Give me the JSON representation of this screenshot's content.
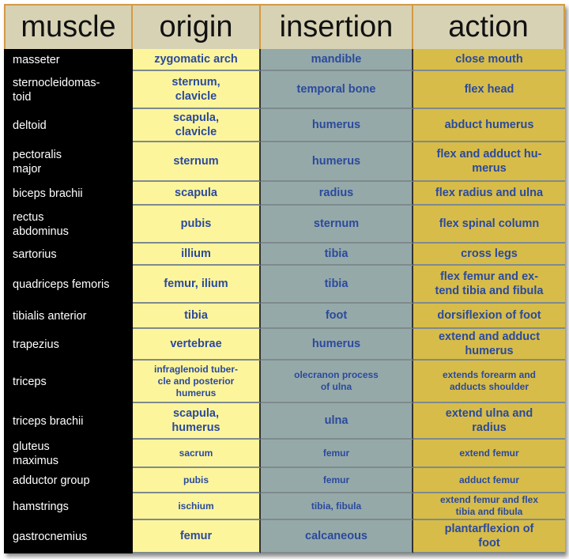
{
  "headers": [
    "muscle",
    "origin",
    "insertion",
    "action"
  ],
  "rows": [
    {
      "muscle": "masseter",
      "origin": "zygomatic arch",
      "insertion": "mandible",
      "action": "close mouth"
    },
    {
      "muscle": "sternocleidomas-\ntoid",
      "origin": "sternum,\nclavicle",
      "insertion": "temporal bone",
      "action": "flex head"
    },
    {
      "muscle": "deltoid",
      "origin": "scapula,\nclavicle",
      "insertion": "humerus",
      "action": "abduct humerus"
    },
    {
      "muscle": "pectoralis\nmajor",
      "origin": "sternum",
      "insertion": "humerus",
      "action": "flex and adduct hu-\nmerus"
    },
    {
      "muscle": "biceps brachii",
      "origin": "scapula",
      "insertion": "radius",
      "action": "flex radius and ulna"
    },
    {
      "muscle": "rectus\nabdominus",
      "origin": "pubis",
      "insertion": "sternum",
      "action": "flex spinal column"
    },
    {
      "muscle": "sartorius",
      "origin": "illium",
      "insertion": "tibia",
      "action": "cross legs"
    },
    {
      "muscle": "quadriceps femoris",
      "origin": "femur, ilium",
      "insertion": "tibia",
      "action": "flex femur and ex-\ntend tibia and fibula"
    },
    {
      "muscle": "tibialis anterior",
      "origin": "tibia",
      "insertion": "foot",
      "action": "dorsiflexion of foot"
    },
    {
      "muscle": "trapezius",
      "origin": "vertebrae",
      "insertion": "humerus",
      "action": "extend and adduct\nhumerus"
    },
    {
      "muscle": "triceps",
      "origin": "infraglenoid tuber-\ncle and posterior\nhumerus",
      "insertion": "olecranon process\nof ulna",
      "action": "extends forearm and\nadducts shoulder"
    },
    {
      "muscle": "triceps brachii",
      "origin": "scapula,\nhumerus",
      "insertion": "ulna",
      "action": "extend ulna and\nradius"
    },
    {
      "muscle": "gluteus\nmaximus",
      "origin": "sacrum",
      "insertion": "femur",
      "action": "extend femur"
    },
    {
      "muscle": "adductor group",
      "origin": "pubis",
      "insertion": "femur",
      "action": "adduct femur"
    },
    {
      "muscle": "hamstrings",
      "origin": "ischium",
      "insertion": "tibia, fibula",
      "action": "extend femur and flex\ntibia and fibula"
    },
    {
      "muscle": "gastrocnemius",
      "origin": "femur",
      "insertion": "calcaneous",
      "action": "plantarflexion of\nfoot"
    }
  ],
  "colors": {
    "header_bg": "#d7d2b4",
    "origin_bg": "#fdf59c",
    "insertion_bg": "#95a9a9",
    "action_bg": "#d7bc49",
    "muscle_bg": "#000000",
    "cell_text": "#2b4a9c"
  }
}
